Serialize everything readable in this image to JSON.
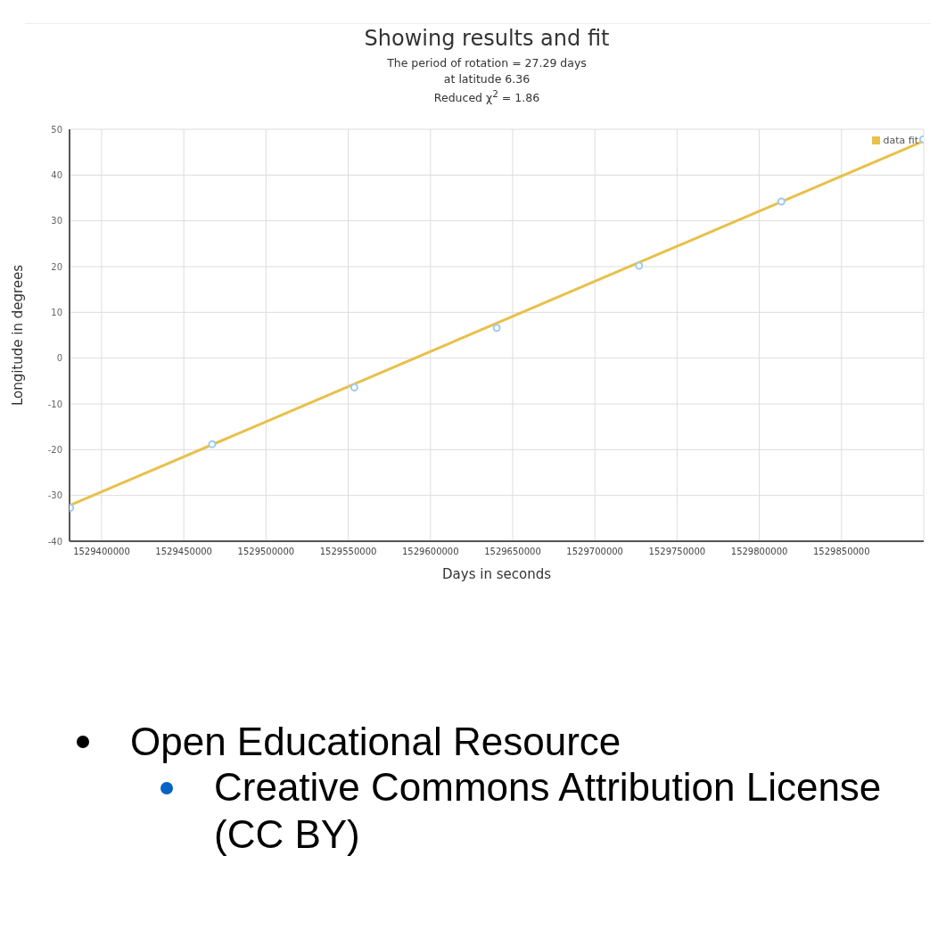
{
  "chart_data": {
    "type": "scatter",
    "title": "Showing results and fit",
    "subtitle": "The period of rotation = 27.29 days",
    "xlabel": "Days in seconds",
    "ylabel": "Longitude in degrees",
    "xlim": [
      1529380500,
      1529900000
    ],
    "xticks": [
      1529400000,
      1529450000,
      1529500000,
      1529550000,
      1529600000,
      1529650000,
      1529700000,
      1529750000,
      1529800000,
      1529850000
    ],
    "ylim": [
      -40,
      50
    ],
    "yticks": [
      -40,
      -30,
      -20,
      -10,
      0,
      10,
      20,
      30,
      40,
      50
    ],
    "grid": true,
    "legend": "top right",
    "series": [
      {
        "color": "#9ecbf0",
        "x": [
          1529380900,
          1529467250,
          1529553700,
          1529640300,
          1529726900,
          1529813400,
          1529899700
        ],
        "values": [
          -32.7,
          -18.8,
          -6.4,
          6.6,
          20.2,
          34.2,
          47.8
        ],
        "marker": "circle"
      },
      {
        "type": "line",
        "name": "data fit",
        "color": "#e8c04a",
        "x": [
          1529380500,
          1529899700
        ],
        "values": [
          -32.2,
          47.4
        ]
      }
    ],
    "annotations": [
      "at latitude 6.36",
      "Reduced χ$^{2}$ = 1.86",
      "Open Educational Resource",
      "Creative Commons Attribution License (CC BY)"
    ]
  }
}
